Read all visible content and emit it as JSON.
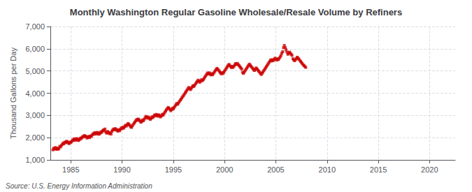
{
  "chart_data": {
    "type": "scatter",
    "title": "Monthly Washington Regular Gasoline Wholesale/Resale Volume by Refiners",
    "ylabel": "Thousand Gallons per Day",
    "annotation": "Source: U.S. Energy Information Administration",
    "color": "#CC0000",
    "marker": "square",
    "grid": true,
    "xlim": [
      1983.0,
      2022.5
    ],
    "xticks": [
      1985,
      1990,
      1995,
      2000,
      2005,
      2010,
      2015,
      2020
    ],
    "ylim": [
      1000,
      7000
    ],
    "yticks": [
      {
        "value": 1000,
        "label": "1,000"
      },
      {
        "value": 2000,
        "label": "2,000"
      },
      {
        "value": 3000,
        "label": "3,000"
      },
      {
        "value": 4000,
        "label": "4,000"
      },
      {
        "value": 5000,
        "label": "5,000"
      },
      {
        "value": 6000,
        "label": "6,000"
      },
      {
        "value": 7000,
        "label": "7,000"
      }
    ],
    "x": [
      1983.25,
      1983.33,
      1983.42,
      1983.5,
      1983.58,
      1983.67,
      1983.75,
      1983.83,
      1983.92,
      1984.0,
      1984.08,
      1984.17,
      1984.25,
      1984.33,
      1984.42,
      1984.5,
      1984.58,
      1984.67,
      1984.75,
      1984.83,
      1984.92,
      1985.0,
      1985.08,
      1985.17,
      1985.25,
      1985.33,
      1985.42,
      1985.5,
      1985.58,
      1985.67,
      1985.75,
      1985.83,
      1985.92,
      1986.0,
      1986.08,
      1986.17,
      1986.25,
      1986.33,
      1986.42,
      1986.5,
      1986.58,
      1986.67,
      1986.75,
      1986.83,
      1986.92,
      1987.0,
      1987.08,
      1987.17,
      1987.25,
      1987.33,
      1987.42,
      1987.5,
      1987.58,
      1987.67,
      1987.75,
      1987.83,
      1987.92,
      1988.0,
      1988.08,
      1988.17,
      1988.25,
      1988.33,
      1988.42,
      1988.5,
      1988.58,
      1988.67,
      1988.75,
      1988.83,
      1988.92,
      1989.0,
      1989.08,
      1989.17,
      1989.25,
      1989.33,
      1989.42,
      1989.5,
      1989.58,
      1989.67,
      1989.75,
      1989.83,
      1989.92,
      1990.0,
      1990.08,
      1990.17,
      1990.25,
      1990.33,
      1990.42,
      1990.5,
      1990.58,
      1990.67,
      1990.75,
      1990.83,
      1990.92,
      1991.0,
      1991.08,
      1991.17,
      1991.25,
      1991.33,
      1991.42,
      1991.5,
      1991.58,
      1991.67,
      1991.75,
      1991.83,
      1991.92,
      1992.0,
      1992.08,
      1992.17,
      1992.25,
      1992.33,
      1992.42,
      1992.5,
      1992.58,
      1992.67,
      1992.75,
      1992.83,
      1992.92,
      1993.0,
      1993.08,
      1993.17,
      1993.25,
      1993.33,
      1993.42,
      1993.5,
      1993.58,
      1993.67,
      1993.75,
      1993.83,
      1993.92,
      1994.0,
      1994.08,
      1994.17,
      1994.25,
      1994.33,
      1994.42,
      1994.5,
      1994.58,
      1994.67,
      1994.75,
      1994.83,
      1994.92,
      1995.0,
      1995.08,
      1995.17,
      1995.25,
      1995.33,
      1995.42,
      1995.5,
      1995.58,
      1995.67,
      1995.75,
      1995.83,
      1995.92,
      1996.0,
      1996.08,
      1996.17,
      1996.25,
      1996.33,
      1996.42,
      1996.5,
      1996.58,
      1996.67,
      1996.75,
      1996.83,
      1996.92,
      1997.0,
      1997.08,
      1997.17,
      1997.25,
      1997.33,
      1997.42,
      1997.5,
      1997.58,
      1997.67,
      1997.75,
      1997.83,
      1997.92,
      1998.0,
      1998.08,
      1998.17,
      1998.25,
      1998.33,
      1998.42,
      1998.5,
      1998.58,
      1998.67,
      1998.75,
      1998.83,
      1998.92,
      1999.0,
      1999.08,
      1999.17,
      1999.25,
      1999.33,
      1999.42,
      1999.5,
      1999.58,
      1999.67,
      1999.75,
      1999.83,
      1999.92,
      2000.0,
      2000.08,
      2000.17,
      2000.25,
      2000.33,
      2000.42,
      2000.5,
      2000.58,
      2000.67,
      2000.75,
      2000.83,
      2000.92,
      2001.0,
      2001.08,
      2001.17,
      2001.25,
      2001.33,
      2001.42,
      2001.5,
      2001.58,
      2001.67,
      2001.75,
      2001.83,
      2001.92,
      2002.0,
      2002.08,
      2002.17,
      2002.25,
      2002.33,
      2002.42,
      2002.5,
      2002.58,
      2002.67,
      2002.75,
      2002.83,
      2002.92,
      2003.0,
      2003.08,
      2003.17,
      2003.25,
      2003.33,
      2003.42,
      2003.5,
      2003.58,
      2003.67,
      2003.75,
      2003.83,
      2003.92,
      2004.0,
      2004.08,
      2004.17,
      2004.25,
      2004.33,
      2004.42,
      2004.5,
      2004.58,
      2004.67,
      2004.75,
      2004.83,
      2004.92,
      2005.0,
      2005.08,
      2005.17,
      2005.25,
      2005.33,
      2005.42,
      2005.5,
      2005.58,
      2005.67,
      2005.75,
      2005.83,
      2005.92,
      2006.0,
      2006.08,
      2006.17,
      2006.25,
      2006.33,
      2006.42,
      2006.5,
      2006.58,
      2006.67,
      2006.75,
      2006.83,
      2006.92,
      2007.0,
      2007.08,
      2007.17,
      2007.25,
      2007.33,
      2007.42,
      2007.5,
      2007.58,
      2007.67,
      2007.75,
      2007.83,
      2007.92
    ],
    "values": [
      1450,
      1530,
      1480,
      1560,
      1500,
      1470,
      1530,
      1490,
      1610,
      1580,
      1650,
      1700,
      1760,
      1720,
      1800,
      1780,
      1840,
      1810,
      1760,
      1730,
      1800,
      1780,
      1830,
      1900,
      1870,
      1950,
      1920,
      1880,
      1960,
      1930,
      1870,
      1910,
      1980,
      1950,
      2010,
      2060,
      2030,
      2100,
      2070,
      2040,
      1980,
      2020,
      2060,
      2000,
      2080,
      2050,
      2120,
      2180,
      2150,
      2230,
      2200,
      2160,
      2240,
      2210,
      2150,
      2190,
      2260,
      2230,
      2300,
      2350,
      2310,
      2390,
      2250,
      2200,
      2280,
      2240,
      2180,
      2220,
      2160,
      2280,
      2340,
      2390,
      2350,
      2410,
      2370,
      2330,
      2290,
      2360,
      2310,
      2370,
      2440,
      2400,
      2470,
      2430,
      2500,
      2560,
      2520,
      2580,
      2640,
      2600,
      2550,
      2490,
      2460,
      2530,
      2590,
      2650,
      2700,
      2760,
      2820,
      2780,
      2840,
      2800,
      2750,
      2690,
      2730,
      2800,
      2760,
      2830,
      2900,
      2960,
      2920,
      2870,
      2930,
      2880,
      2820,
      2870,
      2940,
      2900,
      2960,
      3020,
      2980,
      3050,
      3010,
      2960,
      3030,
      2990,
      2930,
      2980,
      3050,
      3010,
      3080,
      3140,
      3200,
      3260,
      3310,
      3360,
      3320,
      3270,
      3210,
      3260,
      3330,
      3290,
      3360,
      3420,
      3480,
      3540,
      3500,
      3560,
      3620,
      3680,
      3730,
      3790,
      3850,
      3900,
      3960,
      4020,
      4080,
      4140,
      4200,
      4260,
      4210,
      4160,
      4220,
      4280,
      4340,
      4300,
      4360,
      4420,
      4480,
      4530,
      4590,
      4540,
      4490,
      4550,
      4610,
      4560,
      4610,
      4670,
      4730,
      4790,
      4850,
      4910,
      4860,
      4920,
      4870,
      4820,
      4880,
      4830,
      4890,
      4950,
      5010,
      5060,
      5120,
      5080,
      5030,
      4980,
      4920,
      4870,
      4930,
      4880,
      4940,
      5000,
      5060,
      5120,
      5180,
      5240,
      5300,
      5250,
      5200,
      5150,
      5210,
      5160,
      5220,
      5280,
      5340,
      5290,
      5340,
      5290,
      5240,
      5190,
      5140,
      5090,
      4940,
      4890,
      4950,
      5010,
      5070,
      5130,
      5190,
      5250,
      5310,
      5260,
      5210,
      5160,
      5110,
      5060,
      5020,
      5080,
      5140,
      5090,
      5040,
      4990,
      4940,
      4890,
      4840,
      4900,
      4960,
      5020,
      5080,
      5140,
      5200,
      5260,
      5320,
      5380,
      5440,
      5500,
      5450,
      5510,
      5460,
      5520,
      5580,
      5530,
      5490,
      5550,
      5510,
      5570,
      5630,
      5700,
      5800,
      5870,
      6050,
      6150,
      6050,
      5950,
      5850,
      5750,
      5800,
      5850,
      5800,
      5750,
      5700,
      5550,
      5500,
      5460,
      5510,
      5560,
      5620,
      5580,
      5530,
      5480,
      5430,
      5380,
      5330,
      5280,
      5240,
      5200,
      5160
    ]
  }
}
